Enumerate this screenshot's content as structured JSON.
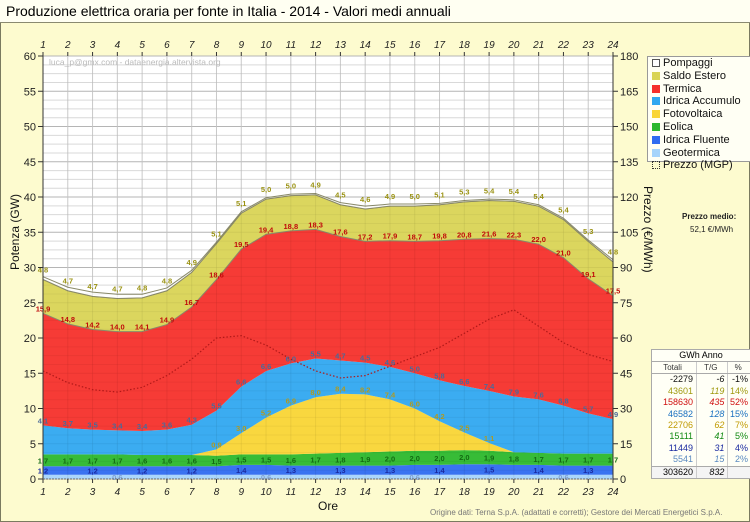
{
  "title": "Produzione elettrica oraria per fonte in Italia - 2014 - Valori medi annuali",
  "watermark": "luca_p@gmx.com - dataenergia.altervista.org",
  "source": "Origine dati: Terna S.p.A. (adattati e corretti); Gestore dei Mercati Energetici S.p.A.",
  "axes": {
    "y_label": "Potenza (GW)",
    "y2_label": "Prezzo (€/MWh)",
    "x_label": "Ore"
  },
  "legend": {
    "items": [
      {
        "label": "Pompaggi",
        "color": "#ffffff",
        "icon": "hollow-square"
      },
      {
        "label": "Saldo Estero",
        "color": "#d9d455"
      },
      {
        "label": "Termica",
        "color": "#f5302b"
      },
      {
        "label": "Idrica Accumulo",
        "color": "#30a8f0"
      },
      {
        "label": "Fotovoltaica",
        "color": "#f9d535"
      },
      {
        "label": "Eolica",
        "color": "#2cb82c"
      },
      {
        "label": "Idrica Fluente",
        "color": "#2f6cf0"
      },
      {
        "label": "Geotermica",
        "color": "#a6d4fb"
      },
      {
        "label": "Prezzo (MGP)",
        "color": "#cc2020",
        "icon": "dotted-square"
      }
    ]
  },
  "price_avg": {
    "label": "Prezzo medio:",
    "value": "52,1 €/MWh"
  },
  "table": {
    "title": "GWh Anno",
    "headers": [
      "Totali",
      "T/G",
      "%"
    ],
    "rows": [
      {
        "tot": "-2279",
        "tg": "-6",
        "pct": "-1%",
        "color": "#111111"
      },
      {
        "tot": "43601",
        "tg": "119",
        "pct": "14%",
        "color": "#a09a10"
      },
      {
        "tot": "158630",
        "tg": "435",
        "pct": "52%",
        "color": "#d01010"
      },
      {
        "tot": "46582",
        "tg": "128",
        "pct": "15%",
        "color": "#1a70c0"
      },
      {
        "tot": "22706",
        "tg": "62",
        "pct": "7%",
        "color": "#c09a00"
      },
      {
        "tot": "15111",
        "tg": "41",
        "pct": "5%",
        "color": "#128a12"
      },
      {
        "tot": "11449",
        "tg": "31",
        "pct": "4%",
        "color": "#1a2aa0"
      },
      {
        "tot": "5541",
        "tg": "15",
        "pct": "2%",
        "color": "#5a8ac0"
      }
    ],
    "total": {
      "tot": "303620",
      "tg": "832"
    }
  },
  "chart_data": {
    "type": "area",
    "title": "Produzione elettrica oraria per fonte in Italia - 2014 - Valori medi annuali",
    "xlabel": "Ore",
    "ylabel": "Potenza (GW)",
    "y2label": "Prezzo (€/MWh)",
    "x": [
      1,
      2,
      3,
      4,
      5,
      6,
      7,
      8,
      9,
      10,
      11,
      12,
      13,
      14,
      15,
      16,
      17,
      18,
      19,
      20,
      21,
      22,
      23,
      24
    ],
    "ylim": [
      0,
      60
    ],
    "y_ticks": [
      0,
      5,
      10,
      15,
      20,
      25,
      30,
      35,
      40,
      45,
      50,
      55,
      60
    ],
    "y2lim": [
      0,
      180
    ],
    "y2_ticks": [
      0,
      15,
      30,
      45,
      60,
      75,
      90,
      105,
      120,
      135,
      150,
      165,
      180
    ],
    "grid": true,
    "stacked": true,
    "series": [
      {
        "name": "Geotermica",
        "values": [
          0.6,
          0.6,
          0.6,
          0.6,
          0.6,
          0.6,
          0.6,
          0.6,
          0.6,
          0.6,
          0.6,
          0.6,
          0.6,
          0.6,
          0.6,
          0.6,
          0.6,
          0.6,
          0.6,
          0.6,
          0.6,
          0.6,
          0.6,
          0.6
        ]
      },
      {
        "name": "Idrica Fluente",
        "values": [
          1.2,
          1.2,
          1.2,
          1.2,
          1.2,
          1.2,
          1.2,
          1.2,
          1.4,
          1.4,
          1.3,
          1.3,
          1.3,
          1.3,
          1.3,
          1.4,
          1.4,
          1.5,
          1.5,
          1.4,
          1.4,
          1.3,
          1.3,
          1.3
        ]
      },
      {
        "name": "Eolica",
        "values": [
          1.7,
          1.7,
          1.7,
          1.7,
          1.6,
          1.6,
          1.6,
          1.5,
          1.5,
          1.5,
          1.6,
          1.7,
          1.8,
          1.9,
          2.0,
          2.0,
          2.0,
          2.0,
          1.9,
          1.8,
          1.7,
          1.7,
          1.7,
          1.7
        ]
      },
      {
        "name": "Fotovoltaica",
        "values": [
          0,
          0,
          0,
          0,
          0,
          0,
          0,
          0.9,
          3.0,
          5.2,
          6.9,
          8.0,
          8.4,
          8.2,
          7.4,
          6.0,
          4.2,
          2.5,
          1.1,
          0,
          0,
          0,
          0,
          0
        ]
      },
      {
        "name": "Idrica Accumulo",
        "values": [
          4.1,
          3.7,
          3.5,
          3.4,
          3.4,
          3.6,
          4.3,
          5.5,
          6.6,
          6.6,
          6.0,
          5.5,
          4.7,
          4.5,
          4.6,
          5.0,
          5.8,
          6.6,
          7.4,
          7.9,
          7.6,
          6.8,
          5.7,
          4.9
        ]
      },
      {
        "name": "Termica",
        "values": [
          15.9,
          14.8,
          14.2,
          14.0,
          14.1,
          14.9,
          16.7,
          18.6,
          19.5,
          19.4,
          18.8,
          18.3,
          17.6,
          17.2,
          17.9,
          18.7,
          19.8,
          20.8,
          21.6,
          22.3,
          22.0,
          21.0,
          19.1,
          17.5
        ]
      },
      {
        "name": "Saldo Estero",
        "values": [
          4.8,
          4.7,
          4.7,
          4.7,
          4.8,
          4.8,
          4.9,
          5.1,
          5.1,
          5.0,
          5.0,
          4.9,
          4.5,
          4.6,
          4.9,
          5.0,
          5.1,
          5.3,
          5.4,
          5.4,
          5.4,
          5.4,
          5.3,
          4.8
        ]
      },
      {
        "name": "Pompaggi",
        "values": [
          0.4,
          0.5,
          0.6,
          0.6,
          0.5,
          0.4,
          0.3,
          0.2,
          0.2,
          0.2,
          0.2,
          0.2,
          0.3,
          0.4,
          0.3,
          0.3,
          0.2,
          0.2,
          0.2,
          0.2,
          0.2,
          0.2,
          0.2,
          0.3
        ]
      }
    ],
    "price_series": {
      "name": "Prezzo (MGP)",
      "axis": "y2",
      "values": [
        46,
        41,
        38,
        37,
        39,
        44,
        51,
        60,
        61,
        57,
        51,
        46,
        43,
        44,
        48,
        52,
        56,
        62,
        68,
        72,
        65,
        58,
        53,
        50
      ]
    }
  }
}
